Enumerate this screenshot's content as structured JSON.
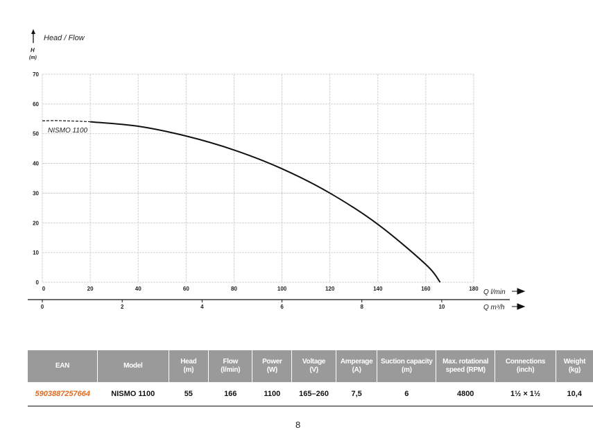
{
  "chart_data": {
    "type": "line",
    "title": "Head / Flow",
    "ylabel": "H (m)",
    "xlabel": "Q l/min",
    "x2label": "Q m³/h",
    "ylim": [
      0,
      70
    ],
    "xlim": [
      0,
      180
    ],
    "yticks": [
      0,
      10,
      20,
      30,
      40,
      50,
      60,
      70
    ],
    "xticks": [
      0,
      20,
      40,
      60,
      80,
      100,
      120,
      140,
      160,
      180
    ],
    "x2ticks": [
      0,
      2,
      4,
      6,
      8,
      10
    ],
    "grid": true,
    "series": [
      {
        "name": "NISMO 1100",
        "dashed": {
          "x": [
            0,
            5,
            10,
            15,
            20
          ],
          "y": [
            54.3,
            54.4,
            54.3,
            54.2,
            54
          ]
        },
        "x": [
          20,
          40,
          60,
          80,
          100,
          120,
          140,
          160,
          166
        ],
        "y": [
          54,
          52.5,
          49.2,
          44.5,
          38.2,
          30,
          19.5,
          6,
          0
        ]
      }
    ]
  },
  "table": {
    "headers": [
      [
        "EAN",
        ""
      ],
      [
        "Model",
        ""
      ],
      [
        "Head",
        "(m)"
      ],
      [
        "Flow",
        "(l/min)"
      ],
      [
        "Power",
        "(W)"
      ],
      [
        "Voltage",
        "(V)"
      ],
      [
        "Amperage",
        "(A)"
      ],
      [
        "Suction capacity",
        "(m)"
      ],
      [
        "Max. rotational",
        "speed (RPM)"
      ],
      [
        "Connections",
        "(inch)"
      ],
      [
        "Weight",
        "(kg)"
      ]
    ],
    "row": [
      "5903887257664",
      "NISMO 1100",
      "55",
      "166",
      "1100",
      "165–260",
      "7,5",
      "6",
      "4800",
      "1½ × 1½",
      "10,4"
    ]
  },
  "page_number": "8"
}
